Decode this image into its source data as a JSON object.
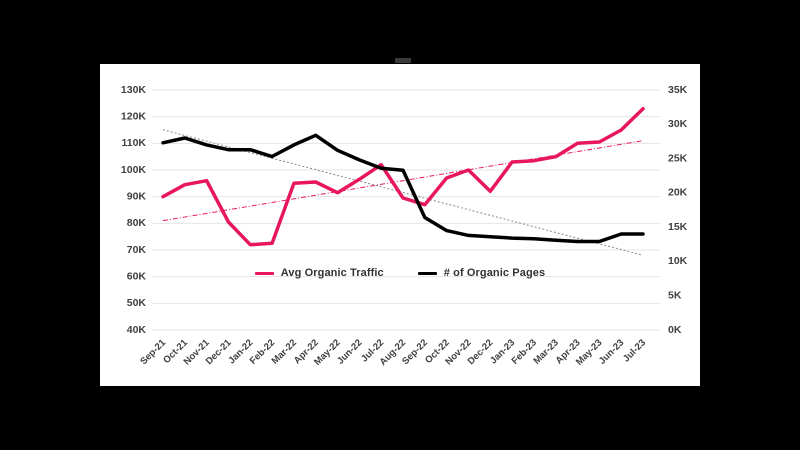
{
  "legend": {
    "items": [
      {
        "label": "Avg Organic Traffic",
        "color": "#e8175d"
      },
      {
        "label": "# of Organic Pages",
        "color": "#000000"
      }
    ]
  },
  "colors": {
    "background": "#000000",
    "panel": "#ffffff",
    "grid": "#e4e4e4",
    "tick_label": "#404040",
    "accent_pink": "#e8175d",
    "series_black": "#000000",
    "trend_gray": "#8a8a8a"
  },
  "chart_data": {
    "type": "line",
    "title": "",
    "categories": [
      "Sep-21",
      "Oct-21",
      "Nov-21",
      "Dec-21",
      "Jan-22",
      "Feb-22",
      "Mar-22",
      "Apr-22",
      "May-22",
      "Jun-22",
      "Jul-22",
      "Aug-22",
      "Sep-22",
      "Oct-22",
      "Nov-22",
      "Dec-22",
      "Jan-23",
      "Feb-23",
      "Mar-23",
      "Apr-23",
      "May-23",
      "Jun-23",
      "Jul-23"
    ],
    "series": [
      {
        "name": "Avg Organic Traffic",
        "axis": "left",
        "color": "#e8175d",
        "unit": "K",
        "values": [
          90,
          94.5,
          96,
          80.5,
          72,
          72.5,
          95,
          95.5,
          91.5,
          96.5,
          102,
          89.5,
          87,
          97,
          100,
          92,
          103,
          103.5,
          105,
          110,
          110.5,
          115,
          123
        ]
      },
      {
        "name": "# of Organic Pages",
        "axis": "right",
        "color": "#000000",
        "unit": "K",
        "values": [
          27.3,
          28,
          27,
          26.3,
          26.3,
          25.3,
          27,
          28.4,
          26.2,
          24.8,
          23.6,
          23.3,
          16.4,
          14.5,
          13.8,
          13.6,
          13.4,
          13.3,
          13.1,
          12.9,
          12.9,
          14,
          14
        ]
      }
    ],
    "trendlines": [
      {
        "series": "Avg Organic Traffic",
        "axis": "left",
        "color": "#e8175d",
        "style": "dash-dot",
        "start": 81,
        "end": 111
      },
      {
        "series": "# of Organic Pages",
        "axis": "right",
        "color": "#8a8a8a",
        "style": "dotted",
        "start": 29.2,
        "end": 10.9
      }
    ],
    "left_axis": {
      "min": 40,
      "max": 130,
      "unit": "K",
      "ticks": [
        "130K",
        "120K",
        "110K",
        "100K",
        "90K",
        "80K",
        "70K",
        "60K",
        "50K",
        "40K"
      ]
    },
    "right_axis": {
      "min": 0,
      "max": 35,
      "unit": "K",
      "ticks": [
        "35K",
        "30K",
        "25K",
        "20K",
        "15K",
        "10K",
        "5K",
        "0K"
      ]
    },
    "grid": true,
    "legend_position": "inside-bottom-center"
  }
}
